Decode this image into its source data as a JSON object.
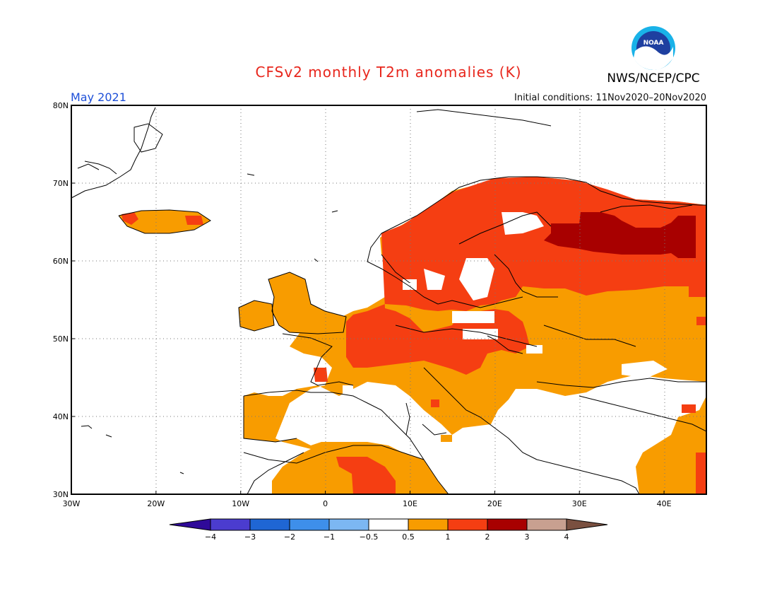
{
  "header": {
    "title": "CFSv2 monthly T2m anomalies (K)",
    "organization": "NWS/NCEP/CPC",
    "logo_text": "NOAA",
    "month": "May 2021",
    "initial_conditions": "Initial conditions: 11Nov2020–20Nov2020"
  },
  "map": {
    "region": "Europe",
    "lon_range": [
      -30,
      45
    ],
    "lat_range": [
      30,
      80
    ],
    "lat_ticks": [
      "30N",
      "40N",
      "50N",
      "60N",
      "70N",
      "80N"
    ],
    "lon_ticks": [
      "30W",
      "20W",
      "10W",
      "0",
      "10E",
      "20E",
      "30E",
      "40E"
    ],
    "grid": "dotted"
  },
  "colorbar": {
    "tick_labels": [
      "−4",
      "−3",
      "−2",
      "−1",
      "−0.5",
      "0.5",
      "1",
      "2",
      "3",
      "4"
    ],
    "colors": [
      "#2f0a99",
      "#4b3ccf",
      "#1f66d4",
      "#3e8fea",
      "#7cb7f2",
      "#ffffff",
      "#f89c00",
      "#f53e12",
      "#a80000",
      "#c8a090",
      "#7a5040"
    ]
  },
  "anomaly_colors": {
    "c05": "#f89c00",
    "c1": "#f53e12",
    "c2": "#a80000"
  }
}
